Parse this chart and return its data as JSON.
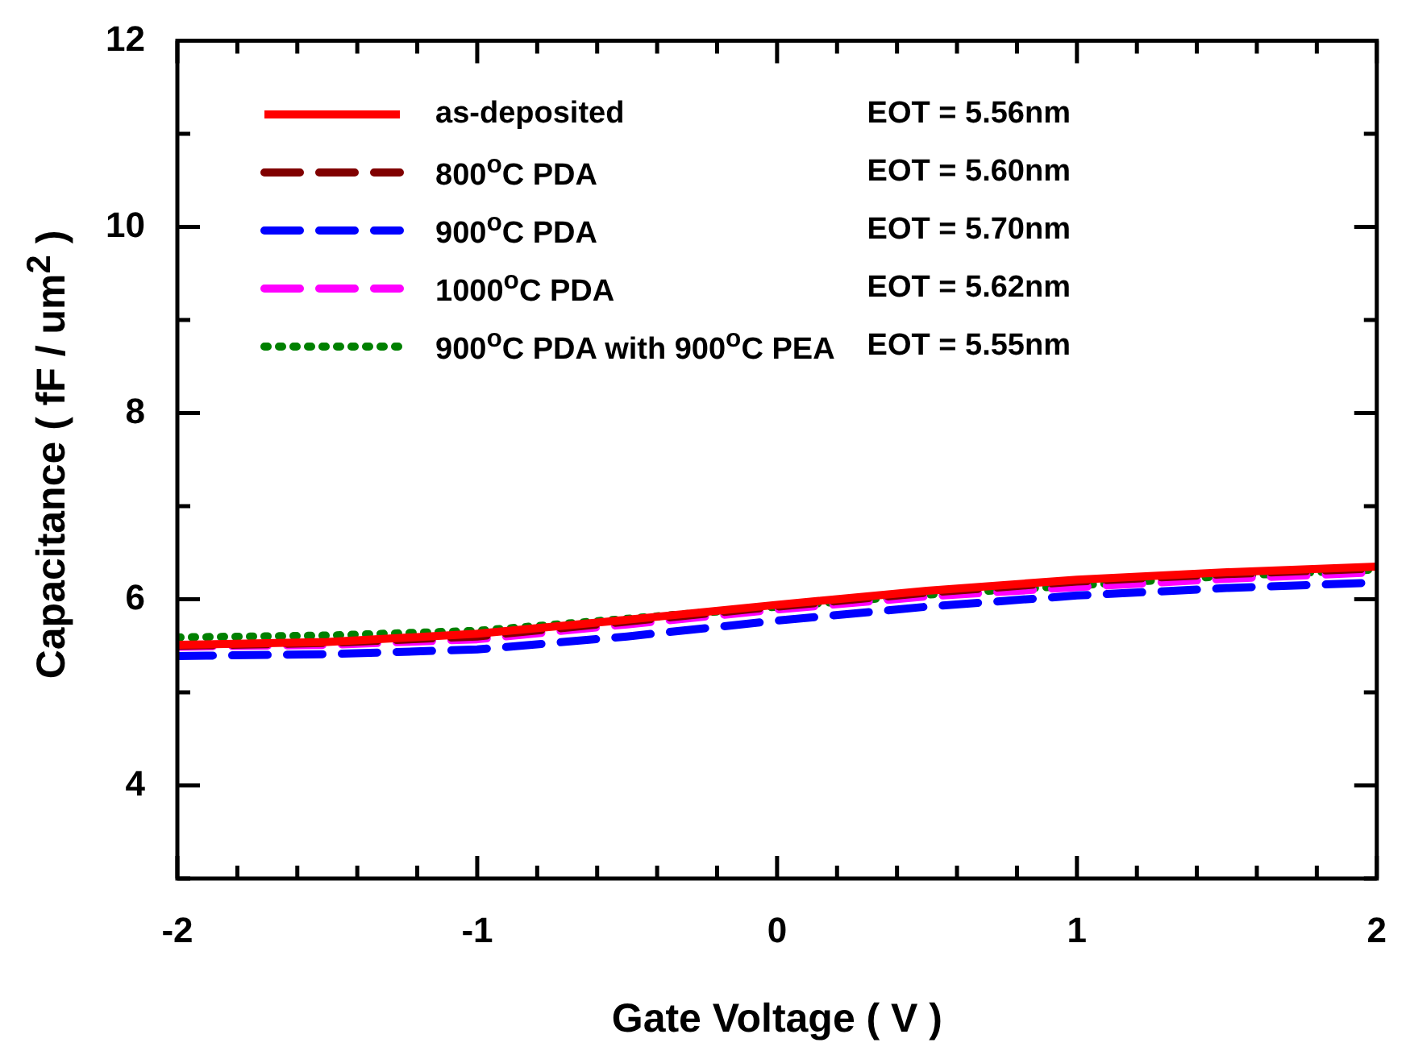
{
  "chart_data": {
    "type": "line",
    "xlabel": "Gate Voltage ( V )",
    "ylabel": "Capacitance ( fF / um$^{2}$ )",
    "x": [
      -2,
      -1.5,
      -1,
      -0.5,
      0,
      0.5,
      1,
      1.5,
      2
    ],
    "xlim": [
      -2,
      2
    ],
    "ylim": [
      3,
      12
    ],
    "xticks": [
      -2,
      {
        "value": -1.8,
        "label": null
      },
      {
        "value": -1.6,
        "label": null
      },
      {
        "value": -1.4,
        "label": null
      },
      {
        "value": -1.2,
        "label": null
      },
      -1,
      {
        "value": -0.8,
        "label": null
      },
      {
        "value": -0.6,
        "label": null
      },
      {
        "value": -0.4,
        "label": null
      },
      {
        "value": -0.2,
        "label": null
      },
      0,
      {
        "value": 0.2,
        "label": null
      },
      {
        "value": 0.4,
        "label": null
      },
      {
        "value": 0.6,
        "label": null
      },
      {
        "value": 0.8,
        "label": null
      },
      1,
      {
        "value": 1.2,
        "label": null
      },
      {
        "value": 1.4,
        "label": null
      },
      {
        "value": 1.6,
        "label": null
      },
      {
        "value": 1.8,
        "label": null
      },
      2
    ],
    "yticks": [
      {
        "value": 3,
        "label": null
      },
      4,
      {
        "value": 5,
        "label": null
      },
      6,
      {
        "value": 7,
        "label": null
      },
      8,
      {
        "value": 9,
        "label": null
      },
      10,
      {
        "value": 11,
        "label": null
      },
      12
    ],
    "series": [
      {
        "name": "as-deposited",
        "color": "#ff0000",
        "line_style": "solid",
        "values": [
          5.51,
          5.54,
          5.63,
          5.78,
          5.94,
          6.09,
          6.21,
          6.29,
          6.35
        ]
      },
      {
        "name": "800$^{o}$C PDA",
        "color": "#800000",
        "line_style": "dashed",
        "values": [
          5.5,
          5.53,
          5.6,
          5.76,
          5.92,
          6.07,
          6.19,
          6.27,
          6.33
        ]
      },
      {
        "name": "900$^{o}$C PDA",
        "color": "#0000ff",
        "line_style": "dashed",
        "values": [
          5.39,
          5.41,
          5.46,
          5.6,
          5.77,
          5.92,
          6.04,
          6.12,
          6.18
        ]
      },
      {
        "name": "1000$^{o}$C PDA",
        "color": "#ff00ff",
        "line_style": "dashed",
        "values": [
          5.49,
          5.51,
          5.57,
          5.73,
          5.89,
          6.03,
          6.13,
          6.22,
          6.29
        ]
      },
      {
        "name": "900$^{o}$C PDA with 900$^{o}$C PEA",
        "color": "#008000",
        "line_style": "dotted",
        "values": [
          5.59,
          5.61,
          5.66,
          5.79,
          5.92,
          6.05,
          6.15,
          6.25,
          6.32
        ]
      }
    ],
    "annotations": [
      "EOT = 5.56nm",
      "EOT = 5.60nm",
      "EOT = 5.70nm",
      "EOT = 5.62nm",
      "EOT = 5.55nm"
    ],
    "legend": "top left",
    "grid": false,
    "marker": "none"
  }
}
